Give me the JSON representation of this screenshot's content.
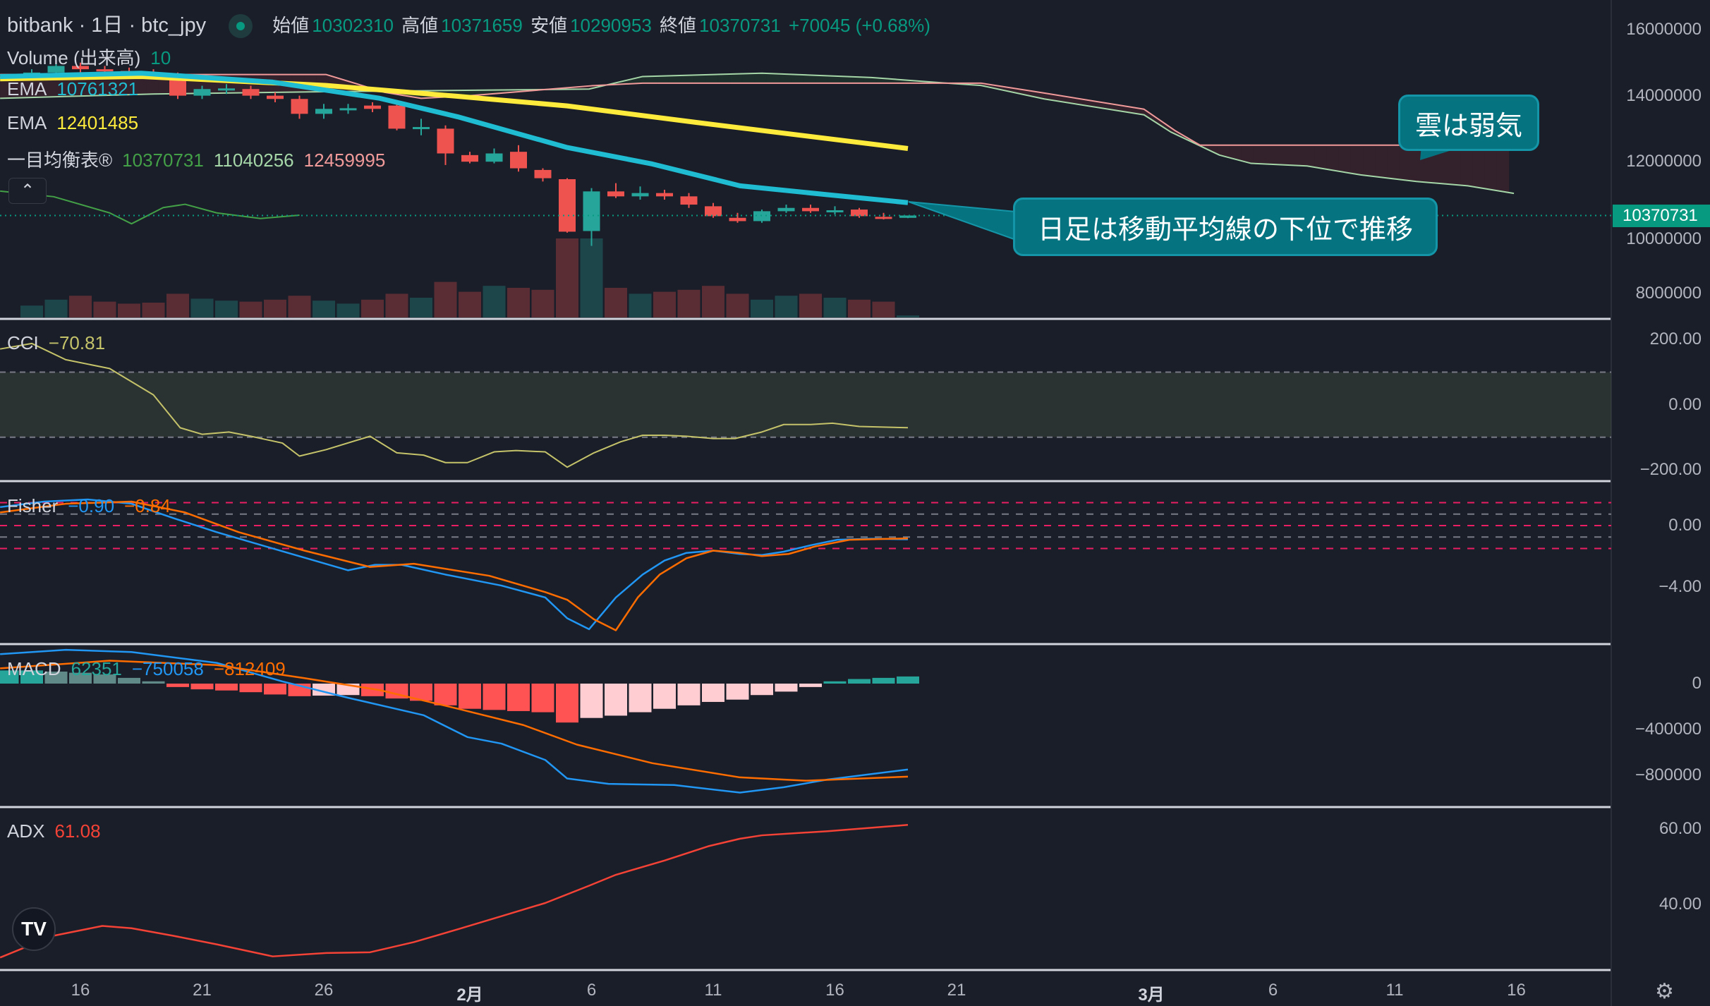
{
  "header": {
    "symbol": "bitbank · 1日 · btc_jpy",
    "open_label": "始値",
    "open": "10302310",
    "high_label": "高値",
    "high": "10371659",
    "low_label": "安値",
    "low": "10290953",
    "close_label": "終値",
    "close": "10370731",
    "change": "+70045 (+0.68%)"
  },
  "legends": {
    "volume": {
      "label": "Volume (出来高)",
      "value": "10"
    },
    "ema1": {
      "label": "EMA",
      "value": "10761321"
    },
    "ema2": {
      "label": "EMA",
      "value": "12401485"
    },
    "ichimoku": {
      "label": "一目均衡表®",
      "v1": "10370731",
      "v2": "11040256",
      "v3": "12459995"
    },
    "cci": {
      "label": "CCI",
      "value": "−70.81"
    },
    "fisher": {
      "label": "Fisher",
      "v1": "−0.90",
      "v2": "−0.84"
    },
    "macd": {
      "label": "MACD",
      "v1": "62351",
      "v2": "−750058",
      "v3": "−812409"
    },
    "adx": {
      "label": "ADX",
      "value": "61.08"
    }
  },
  "annotations": {
    "cloud": "雲は弱気",
    "ma": "日足は移動平均線の下位で推移"
  },
  "buttons": {
    "collapse": "⌃",
    "logo": "TV",
    "settings": "⚙"
  },
  "price_axis": [
    "16000000",
    "14000000",
    "12000000",
    "10000000",
    "8000000"
  ],
  "current_price": "10370731",
  "cci_axis": [
    "200.00",
    "0.00",
    "−200.00"
  ],
  "fisher_axis": [
    "0.00",
    "−4.00"
  ],
  "macd_axis": [
    "0",
    "−400000",
    "−800000"
  ],
  "adx_axis": [
    "60.00",
    "40.00"
  ],
  "time_axis": [
    {
      "label": "16",
      "day": 0
    },
    {
      "label": "21",
      "day": 5
    },
    {
      "label": "26",
      "day": 10
    },
    {
      "label": "2月",
      "day": 16,
      "bold": true
    },
    {
      "label": "6",
      "day": 21
    },
    {
      "label": "11",
      "day": 26
    },
    {
      "label": "16",
      "day": 31
    },
    {
      "label": "21",
      "day": 36
    },
    {
      "label": "3月",
      "day": 44,
      "bold": true
    },
    {
      "label": "6",
      "day": 49
    },
    {
      "label": "11",
      "day": 54
    },
    {
      "label": "16",
      "day": 59
    }
  ],
  "colors": {
    "up": "#26a69a",
    "down": "#ef5350",
    "ema1": "#1fbcd2",
    "ema2": "#ffeb3b",
    "spanA": "#a5d6a7",
    "spanB": "#f19a9a",
    "chikou": "#43a047",
    "cci": "#c5c36a",
    "fisher": "#2196f3",
    "trigger": "#ff6d00",
    "macd": "#2196f3",
    "signal": "#ff6d00",
    "adx": "#f44336",
    "callout": "#067480"
  },
  "chart_data": {
    "type": "candlestick",
    "x_unit": "day offset from Jan 16",
    "candles_start_day": -2,
    "candles_ohlc_millions": [
      [
        14.6,
        14.8,
        14.5,
        14.7
      ],
      [
        14.7,
        15.0,
        14.6,
        14.9
      ],
      [
        14.9,
        15.0,
        14.7,
        14.8
      ],
      [
        14.8,
        14.9,
        14.65,
        14.75
      ],
      [
        14.75,
        14.85,
        14.6,
        14.7
      ],
      [
        14.7,
        14.8,
        14.5,
        14.6
      ],
      [
        14.6,
        14.7,
        13.9,
        14.0
      ],
      [
        14.0,
        14.3,
        13.9,
        14.2
      ],
      [
        14.2,
        14.35,
        14.05,
        14.22
      ],
      [
        14.2,
        14.3,
        13.9,
        14.0
      ],
      [
        14.0,
        14.1,
        13.8,
        13.9
      ],
      [
        13.9,
        14.0,
        13.3,
        13.45
      ],
      [
        13.45,
        13.75,
        13.3,
        13.6
      ],
      [
        13.6,
        13.75,
        13.45,
        13.62
      ],
      [
        13.7,
        13.8,
        13.5,
        13.6
      ],
      [
        13.7,
        13.8,
        12.95,
        13.0
      ],
      [
        13.0,
        13.3,
        12.8,
        13.05
      ],
      [
        13.0,
        13.1,
        11.9,
        12.25
      ],
      [
        12.2,
        12.3,
        11.95,
        12.0
      ],
      [
        12.0,
        12.4,
        11.95,
        12.25
      ],
      [
        12.3,
        12.5,
        11.7,
        11.8
      ],
      [
        11.75,
        11.8,
        11.4,
        11.5
      ],
      [
        11.47,
        11.5,
        9.85,
        9.88
      ],
      [
        9.9,
        11.2,
        9.45,
        11.1
      ],
      [
        11.1,
        11.35,
        10.9,
        10.95
      ],
      [
        10.95,
        11.25,
        10.85,
        11.05
      ],
      [
        11.05,
        11.15,
        10.85,
        10.95
      ],
      [
        10.95,
        11.05,
        10.6,
        10.7
      ],
      [
        10.65,
        10.75,
        10.3,
        10.35
      ],
      [
        10.3,
        10.45,
        10.15,
        10.2
      ],
      [
        10.2,
        10.55,
        10.15,
        10.5
      ],
      [
        10.5,
        10.7,
        10.45,
        10.6
      ],
      [
        10.6,
        10.7,
        10.45,
        10.5
      ],
      [
        10.5,
        10.65,
        10.4,
        10.53
      ],
      [
        10.55,
        10.6,
        10.3,
        10.35
      ],
      [
        10.33,
        10.45,
        10.25,
        10.3
      ],
      [
        10.3,
        10.37,
        10.29,
        10.37
      ]
    ],
    "volume": [
      60,
      90,
      110,
      80,
      70,
      75,
      120,
      95,
      85,
      80,
      90,
      110,
      85,
      70,
      90,
      120,
      100,
      180,
      130,
      160,
      150,
      140,
      400,
      400,
      150,
      120,
      130,
      140,
      160,
      120,
      90,
      110,
      120,
      100,
      90,
      80,
      10
    ],
    "ema_fast": [
      [
        -3.3,
        14.58
      ],
      [
        2.5,
        14.68
      ],
      [
        7.9,
        14.41
      ],
      [
        12.3,
        13.92
      ],
      [
        15.5,
        13.36
      ],
      [
        20,
        12.43
      ],
      [
        23.5,
        11.93
      ],
      [
        27.1,
        11.27
      ],
      [
        30.7,
        11.0
      ],
      [
        34,
        10.76
      ]
    ],
    "ema_slow": [
      [
        -3.3,
        14.51
      ],
      [
        2.5,
        14.58
      ],
      [
        10.1,
        14.31
      ],
      [
        15.5,
        13.98
      ],
      [
        20,
        13.69
      ],
      [
        25.3,
        13.19
      ],
      [
        34,
        12.4
      ]
    ],
    "span_a": [
      [
        -3.3,
        13.92
      ],
      [
        3,
        14.05
      ],
      [
        10,
        14.12
      ],
      [
        20.9,
        14.2
      ],
      [
        23.1,
        14.58
      ],
      [
        28,
        14.68
      ],
      [
        32.5,
        14.55
      ],
      [
        35.6,
        14.38
      ],
      [
        37,
        14.31
      ],
      [
        39.6,
        13.9
      ],
      [
        43.7,
        13.42
      ],
      [
        44.8,
        12.9
      ],
      [
        46.8,
        12.2
      ],
      [
        48.1,
        11.95
      ],
      [
        50.4,
        11.87
      ],
      [
        52.6,
        11.6
      ],
      [
        54.9,
        11.4
      ],
      [
        57,
        11.27
      ],
      [
        58.9,
        11.04
      ]
    ],
    "span_b": [
      [
        -3.3,
        14.64
      ],
      [
        10.1,
        14.64
      ],
      [
        12.5,
        14.1
      ],
      [
        14,
        13.92
      ],
      [
        16,
        14.0
      ],
      [
        21,
        14.3
      ],
      [
        23.1,
        14.38
      ],
      [
        37,
        14.38
      ],
      [
        39.6,
        14.08
      ],
      [
        43.7,
        13.59
      ],
      [
        45,
        12.93
      ],
      [
        46,
        12.5
      ],
      [
        58.9,
        12.5
      ]
    ],
    "chikou": [
      [
        -3.3,
        11.11
      ],
      [
        -1.1,
        10.94
      ],
      [
        1.2,
        10.45
      ],
      [
        2.1,
        10.12
      ],
      [
        3.4,
        10.61
      ],
      [
        4.3,
        10.71
      ],
      [
        5.6,
        10.45
      ],
      [
        7.4,
        10.28
      ],
      [
        9,
        10.38
      ]
    ],
    "price_range_millions": [
      7.05,
      16.9
    ],
    "cci": [
      [
        -3.3,
        171
      ],
      [
        -2,
        188
      ],
      [
        -0.6,
        138
      ],
      [
        1.2,
        111
      ],
      [
        3,
        30
      ],
      [
        4.1,
        -71
      ],
      [
        5,
        -91
      ],
      [
        6.1,
        -84
      ],
      [
        7,
        -97
      ],
      [
        8.3,
        -118
      ],
      [
        9,
        -158
      ],
      [
        10.1,
        -138
      ],
      [
        11.9,
        -97
      ],
      [
        13,
        -148
      ],
      [
        14.1,
        -155
      ],
      [
        15,
        -178
      ],
      [
        15.9,
        -178
      ],
      [
        17,
        -145
      ],
      [
        17.9,
        -141
      ],
      [
        19.1,
        -145
      ],
      [
        20,
        -192
      ],
      [
        21.1,
        -148
      ],
      [
        22.2,
        -114
      ],
      [
        23.1,
        -94
      ],
      [
        24,
        -94
      ],
      [
        24.9,
        -97
      ],
      [
        26,
        -104
      ],
      [
        26.9,
        -104
      ],
      [
        28,
        -84
      ],
      [
        28.9,
        -61
      ],
      [
        30,
        -61
      ],
      [
        30.9,
        -57
      ],
      [
        32,
        -67
      ],
      [
        34,
        -70.81
      ]
    ],
    "cci_band": [
      -100,
      100
    ],
    "fisher": [
      [
        -3.3,
        1.21
      ],
      [
        -1.5,
        1.57
      ],
      [
        0.3,
        1.71
      ],
      [
        2.1,
        1.43
      ],
      [
        3.8,
        0.5
      ],
      [
        5.6,
        -0.43
      ],
      [
        7.9,
        -1.5
      ],
      [
        11,
        -2.93
      ],
      [
        12.1,
        -2.57
      ],
      [
        13.2,
        -2.57
      ],
      [
        15,
        -3.21
      ],
      [
        17.3,
        -3.93
      ],
      [
        19.1,
        -4.71
      ],
      [
        20,
        -6.07
      ],
      [
        20.9,
        -6.79
      ],
      [
        22,
        -4.71
      ],
      [
        23.1,
        -3.21
      ],
      [
        24,
        -2.29
      ],
      [
        24.9,
        -1.79
      ],
      [
        26,
        -1.64
      ],
      [
        27.1,
        -1.86
      ],
      [
        28,
        -1.93
      ],
      [
        28.9,
        -1.71
      ],
      [
        30,
        -1.29
      ],
      [
        31.1,
        -0.93
      ],
      [
        32.5,
        -0.86
      ],
      [
        34,
        -0.9
      ]
    ],
    "fisher_trigger": [
      [
        -3.3,
        0.86
      ],
      [
        -0.6,
        1.43
      ],
      [
        2.1,
        1.57
      ],
      [
        4.3,
        0.86
      ],
      [
        6.5,
        -0.43
      ],
      [
        9.2,
        -1.64
      ],
      [
        11.9,
        -2.71
      ],
      [
        13.7,
        -2.5
      ],
      [
        16.8,
        -3.29
      ],
      [
        19.1,
        -4.36
      ],
      [
        20,
        -4.86
      ],
      [
        21.1,
        -6.14
      ],
      [
        22,
        -6.86
      ],
      [
        22.9,
        -4.71
      ],
      [
        23.8,
        -3.21
      ],
      [
        24.9,
        -2.14
      ],
      [
        26,
        -1.64
      ],
      [
        27.1,
        -1.79
      ],
      [
        28,
        -2.0
      ],
      [
        29.1,
        -1.86
      ],
      [
        30.2,
        -1.36
      ],
      [
        31.6,
        -0.93
      ],
      [
        34,
        -0.84
      ]
    ],
    "fisher_levels": [
      1.5,
      0.75,
      0,
      -0.75,
      -1.5
    ],
    "macd_hist_start_day": -3,
    "macd_hist_k": [
      115,
      115,
      105,
      95,
      80,
      50,
      20,
      -30,
      -50,
      -60,
      -75,
      -95,
      -110,
      -105,
      -100,
      -110,
      -130,
      -150,
      -190,
      -220,
      -230,
      -240,
      -250,
      -340,
      -300,
      -280,
      -250,
      -220,
      -190,
      -160,
      -140,
      -100,
      -70,
      -30,
      20,
      40,
      50,
      62.351
    ],
    "macd_k": [
      [
        -3.3,
        257
      ],
      [
        -0.6,
        295
      ],
      [
        2.1,
        276
      ],
      [
        5.6,
        181
      ],
      [
        8.3,
        19
      ],
      [
        11,
        -124
      ],
      [
        14.1,
        -276
      ],
      [
        15.9,
        -467
      ],
      [
        17.3,
        -524
      ],
      [
        19.1,
        -667
      ],
      [
        20,
        -829
      ],
      [
        21.7,
        -876
      ],
      [
        24.4,
        -886
      ],
      [
        27.1,
        -952
      ],
      [
        28.9,
        -905
      ],
      [
        30.7,
        -838
      ],
      [
        34,
        -750.058
      ]
    ],
    "signal_k": [
      [
        -3.3,
        133
      ],
      [
        1.2,
        200
      ],
      [
        5.6,
        162
      ],
      [
        9.2,
        48
      ],
      [
        12.3,
        -57
      ],
      [
        15.5,
        -219
      ],
      [
        18.2,
        -362
      ],
      [
        20.4,
        -533
      ],
      [
        23.5,
        -695
      ],
      [
        27.1,
        -819
      ],
      [
        29.8,
        -848
      ],
      [
        34,
        -812.409
      ]
    ],
    "adx": [
      [
        -3.3,
        25.8
      ],
      [
        -1.1,
        31.6
      ],
      [
        0.9,
        34.2
      ],
      [
        2.1,
        33.6
      ],
      [
        3.8,
        31.6
      ],
      [
        5.6,
        29.3
      ],
      [
        7.9,
        26.1
      ],
      [
        10.1,
        27
      ],
      [
        11.9,
        27.2
      ],
      [
        13.7,
        29.9
      ],
      [
        15.5,
        33.3
      ],
      [
        17.3,
        36.8
      ],
      [
        19.1,
        40.3
      ],
      [
        20.9,
        44.9
      ],
      [
        22,
        47.8
      ],
      [
        24,
        51.6
      ],
      [
        25.8,
        55.4
      ],
      [
        27.1,
        57.4
      ],
      [
        28,
        58.3
      ],
      [
        30.7,
        59.4
      ],
      [
        34,
        61.08
      ]
    ]
  }
}
